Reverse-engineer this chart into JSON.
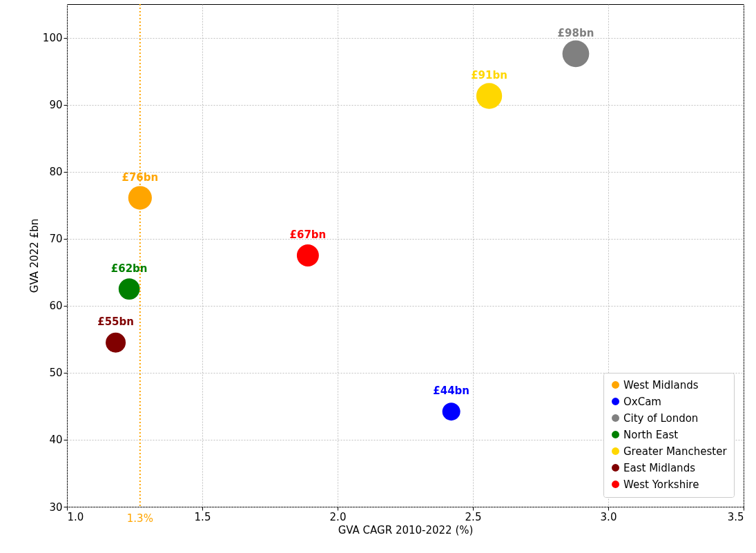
{
  "chart_data": {
    "type": "bubble",
    "xlabel": "GVA CAGR 2010-2022 (%)",
    "ylabel": "GVA 2022 £bn",
    "xlim": [
      1.0,
      3.5
    ],
    "xticks": [
      {
        "value": 1,
        "label": "1.0"
      },
      1.5,
      {
        "value": 2,
        "label": "2.0"
      },
      2.5,
      {
        "value": 3,
        "label": "3.0"
      },
      3.5
    ],
    "ylim": [
      30,
      105
    ],
    "yticks": [
      30,
      40,
      50,
      60,
      70,
      80,
      90,
      100
    ],
    "grid": true,
    "legend": "bottom right",
    "marker": "circle",
    "ref_lines": [
      {
        "axis": "x",
        "value": 1.27,
        "label": "1.3%",
        "color": "#ffa500",
        "line_style": "dotted"
      }
    ],
    "series": [
      {
        "name": "West Midlands",
        "color": "#ffa500",
        "x": [
          1.27
        ],
        "values": [
          76.1
        ],
        "sizes": [
          0.78
        ],
        "value_labels": [
          "£76bn"
        ]
      },
      {
        "name": "OxCam",
        "color": "#0000ff",
        "x": [
          2.42
        ],
        "values": [
          44.2
        ],
        "sizes": [
          0.45
        ],
        "value_labels": [
          "£44bn"
        ]
      },
      {
        "name": "City of London",
        "color": "#808080",
        "x": [
          2.88
        ],
        "values": [
          97.6
        ],
        "sizes": [
          1
        ],
        "value_labels": [
          "£98bn"
        ]
      },
      {
        "name": "North East",
        "color": "#008000",
        "x": [
          1.23
        ],
        "values": [
          62.5
        ],
        "sizes": [
          0.63
        ],
        "value_labels": [
          "£62bn"
        ]
      },
      {
        "name": "Greater Manchester",
        "color": "#ffd700",
        "x": [
          2.56
        ],
        "values": [
          91.3
        ],
        "sizes": [
          0.93
        ],
        "value_labels": [
          "£91bn"
        ]
      },
      {
        "name": "East Midlands",
        "color": "#800000",
        "x": [
          1.18
        ],
        "values": [
          54.5
        ],
        "sizes": [
          0.56
        ],
        "value_labels": [
          "£55bn"
        ]
      },
      {
        "name": "West Yorkshire",
        "color": "#ff0000",
        "x": [
          1.89
        ],
        "values": [
          67.5
        ],
        "sizes": [
          0.68
        ],
        "value_labels": [
          "£67bn"
        ]
      }
    ]
  }
}
